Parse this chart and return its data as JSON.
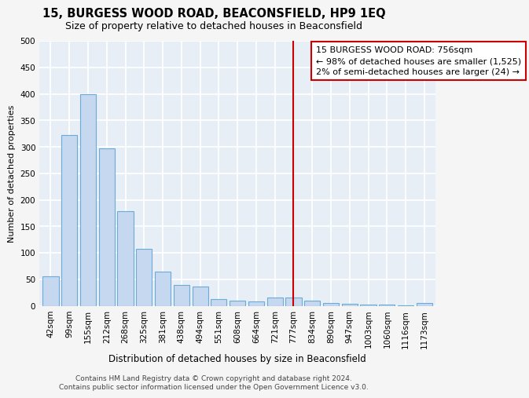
{
  "title": "15, BURGESS WOOD ROAD, BEACONSFIELD, HP9 1EQ",
  "subtitle": "Size of property relative to detached houses in Beaconsfield",
  "xlabel": "Distribution of detached houses by size in Beaconsfield",
  "ylabel": "Number of detached properties",
  "footer1": "Contains HM Land Registry data © Crown copyright and database right 2024.",
  "footer2": "Contains public sector information licensed under the Open Government Licence v3.0.",
  "categories": [
    "42sqm",
    "99sqm",
    "155sqm",
    "212sqm",
    "268sqm",
    "325sqm",
    "381sqm",
    "438sqm",
    "494sqm",
    "551sqm",
    "608sqm",
    "664sqm",
    "721sqm",
    "777sqm",
    "834sqm",
    "890sqm",
    "947sqm",
    "1003sqm",
    "1060sqm",
    "1116sqm",
    "1173sqm"
  ],
  "values": [
    55,
    322,
    400,
    297,
    178,
    108,
    65,
    40,
    37,
    12,
    10,
    8,
    15,
    15,
    9,
    5,
    4,
    2,
    2,
    1,
    5
  ],
  "bar_color": "#c5d8ef",
  "bar_edgecolor": "#6aacd5",
  "vline_x": 13,
  "vline_color": "#cc0000",
  "annotation_title": "15 BURGESS WOOD ROAD: 756sqm",
  "annotation_line1": "← 98% of detached houses are smaller (1,525)",
  "annotation_line2": "2% of semi-detached houses are larger (24) →",
  "annotation_box_edgecolor": "#cc0000",
  "ylim": [
    0,
    500
  ],
  "yticks": [
    0,
    50,
    100,
    150,
    200,
    250,
    300,
    350,
    400,
    450,
    500
  ],
  "bg_color": "#e8eef6",
  "grid_color": "#ffffff",
  "fig_bg": "#f5f5f5",
  "title_fontsize": 10.5,
  "subtitle_fontsize": 9,
  "xlabel_fontsize": 8.5,
  "ylabel_fontsize": 8,
  "tick_fontsize": 7.5,
  "annotation_fontsize": 8,
  "footer_fontsize": 6.5
}
